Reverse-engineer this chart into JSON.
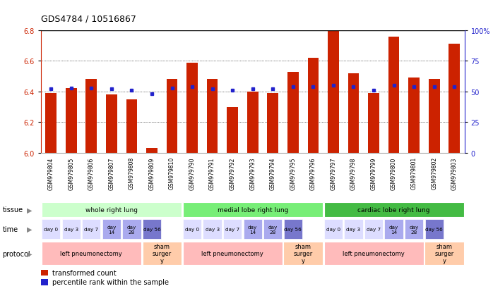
{
  "title": "GDS4784 / 10516867",
  "samples": [
    "GSM979804",
    "GSM979805",
    "GSM979806",
    "GSM979807",
    "GSM979808",
    "GSM979809",
    "GSM979810",
    "GSM979790",
    "GSM979791",
    "GSM979792",
    "GSM979793",
    "GSM979794",
    "GSM979795",
    "GSM979796",
    "GSM979797",
    "GSM979798",
    "GSM979799",
    "GSM979800",
    "GSM979801",
    "GSM979802",
    "GSM979803"
  ],
  "red_values": [
    6.39,
    6.42,
    6.48,
    6.38,
    6.35,
    6.03,
    6.48,
    6.59,
    6.48,
    6.3,
    6.4,
    6.39,
    6.53,
    6.62,
    6.8,
    6.52,
    6.39,
    6.76,
    6.49,
    6.48,
    6.71
  ],
  "blue_values": [
    52,
    53,
    53,
    52,
    51,
    48,
    53,
    54,
    52,
    51,
    52,
    52,
    54,
    54,
    55,
    54,
    51,
    55,
    54,
    54,
    54
  ],
  "ylim_left": [
    6.0,
    6.8
  ],
  "ylim_right": [
    0,
    100
  ],
  "yticks_left": [
    6.0,
    6.2,
    6.4,
    6.6,
    6.8
  ],
  "yticks_right": [
    0,
    25,
    50,
    75,
    100
  ],
  "ytick_labels_right": [
    "0",
    "25",
    "50",
    "75",
    "100%"
  ],
  "bar_color": "#cc2200",
  "dot_color": "#2222cc",
  "tissue_data": [
    {
      "label": "whole right lung",
      "start": 0,
      "end": 7,
      "color": "#ccffcc"
    },
    {
      "label": "medial lobe right lung",
      "start": 7,
      "end": 14,
      "color": "#77ee77"
    },
    {
      "label": "cardiac lobe right lung",
      "start": 14,
      "end": 21,
      "color": "#44bb44"
    }
  ],
  "time_data": [
    {
      "col": 0,
      "label": "day 0",
      "color": "#ddddff"
    },
    {
      "col": 1,
      "label": "day 3",
      "color": "#ddddff"
    },
    {
      "col": 2,
      "label": "day 7",
      "color": "#ddddff"
    },
    {
      "col": 3,
      "label": "day\n14",
      "color": "#aaaaee"
    },
    {
      "col": 4,
      "label": "day\n28",
      "color": "#aaaaee"
    },
    {
      "col": 5,
      "label": "day 56",
      "color": "#7777cc"
    },
    {
      "col": 7,
      "label": "day 0",
      "color": "#ddddff"
    },
    {
      "col": 8,
      "label": "day 3",
      "color": "#ddddff"
    },
    {
      "col": 9,
      "label": "day 7",
      "color": "#ddddff"
    },
    {
      "col": 10,
      "label": "day\n14",
      "color": "#aaaaee"
    },
    {
      "col": 11,
      "label": "day\n28",
      "color": "#aaaaee"
    },
    {
      "col": 12,
      "label": "day 56",
      "color": "#7777cc"
    },
    {
      "col": 14,
      "label": "day 0",
      "color": "#ddddff"
    },
    {
      "col": 15,
      "label": "day 3",
      "color": "#ddddff"
    },
    {
      "col": 16,
      "label": "day 7",
      "color": "#ddddff"
    },
    {
      "col": 17,
      "label": "day\n14",
      "color": "#aaaaee"
    },
    {
      "col": 18,
      "label": "day\n28",
      "color": "#aaaaee"
    },
    {
      "col": 19,
      "label": "day 56",
      "color": "#7777cc"
    }
  ],
  "protocol_data": [
    {
      "start": 0,
      "end": 5,
      "label": "left pneumonectomy",
      "color": "#ffbbbb"
    },
    {
      "start": 5,
      "end": 7,
      "label": "sham\nsurger\ny",
      "color": "#ffccaa"
    },
    {
      "start": 7,
      "end": 12,
      "label": "left pneumonectomy",
      "color": "#ffbbbb"
    },
    {
      "start": 12,
      "end": 14,
      "label": "sham\nsurger\ny",
      "color": "#ffccaa"
    },
    {
      "start": 14,
      "end": 19,
      "label": "left pneumonectomy",
      "color": "#ffbbbb"
    },
    {
      "start": 19,
      "end": 21,
      "label": "sham\nsurger\ny",
      "color": "#ffccaa"
    }
  ],
  "bar_color_red": "#cc2200",
  "dot_color_blue": "#2222cc",
  "xlabels_bg": "#cccccc",
  "left_label_color": "#888888"
}
